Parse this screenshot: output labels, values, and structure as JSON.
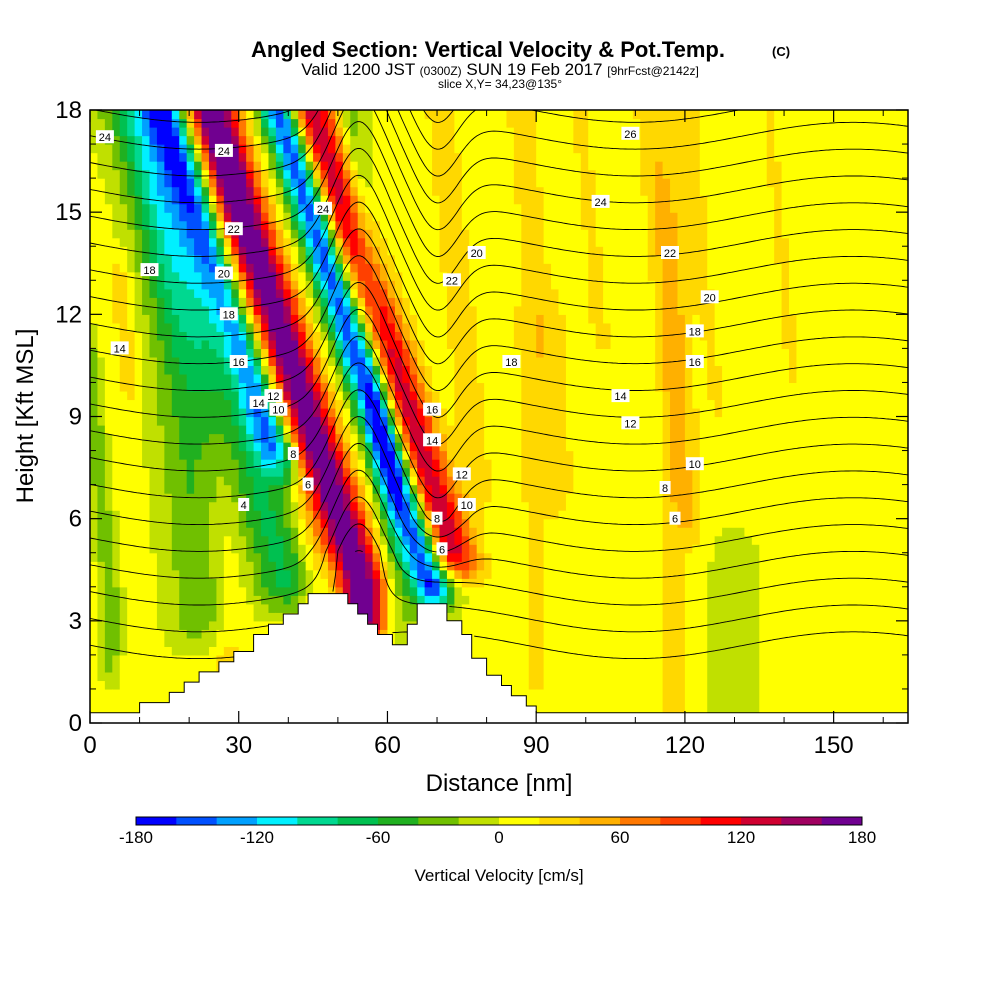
{
  "chart_data": {
    "type": "heatmap",
    "title_main": "Angled Section: Vertical Velocity & Pot.Temp.",
    "title_mark": "(C)",
    "subtitle_a": "Valid 1200 JST",
    "subtitle_b": "(0300Z)",
    "subtitle_c": "SUN 19 Feb 2017",
    "subtitle_d": "[9hrFcst@2142z]",
    "slice_label": "slice X,Y= 34,23@135°",
    "xlabel": "Distance [nm]",
    "ylabel": "Height [Kft MSL]",
    "xlim": [
      0,
      165
    ],
    "ylim": [
      0,
      18
    ],
    "x_ticks": [
      {
        "v": 0,
        "label": "0"
      },
      {
        "v": 30,
        "label": "30"
      },
      {
        "v": 60,
        "label": "60"
      },
      {
        "v": 90,
        "label": "90"
      },
      {
        "v": 120,
        "label": "120"
      },
      {
        "v": 150,
        "label": "150"
      }
    ],
    "y_ticks": [
      {
        "v": 0,
        "label": "0"
      },
      {
        "v": 3,
        "label": "3"
      },
      {
        "v": 6,
        "label": "6"
      },
      {
        "v": 9,
        "label": "9"
      },
      {
        "v": 12,
        "label": "12"
      },
      {
        "v": 15,
        "label": "15"
      },
      {
        "v": 18,
        "label": "18"
      }
    ],
    "colorbar": {
      "label": "Vertical Velocity [cm/s]",
      "range": [
        -180,
        180
      ],
      "colors": [
        "#0000ff",
        "#0050ff",
        "#00a0ff",
        "#00f0ff",
        "#00d890",
        "#00c050",
        "#20b020",
        "#70c000",
        "#c0e000",
        "#ffff00",
        "#ffd800",
        "#ffb000",
        "#ff7800",
        "#ff4000",
        "#ff0000",
        "#d00030",
        "#a00060",
        "#700090"
      ],
      "ticks": [
        {
          "v": -180,
          "label": "-180"
        },
        {
          "v": -120,
          "label": "-120"
        },
        {
          "v": -60,
          "label": "-60"
        },
        {
          "v": 0,
          "label": "0"
        },
        {
          "v": 60,
          "label": "60"
        },
        {
          "v": 120,
          "label": "120"
        },
        {
          "v": 180,
          "label": "180"
        }
      ]
    },
    "terrain": [
      [
        0,
        0.3
      ],
      [
        10,
        0.3
      ],
      [
        10,
        0.6
      ],
      [
        16,
        0.6
      ],
      [
        16,
        0.9
      ],
      [
        19,
        0.9
      ],
      [
        19,
        1.2
      ],
      [
        22,
        1.2
      ],
      [
        22,
        1.5
      ],
      [
        26,
        1.5
      ],
      [
        26,
        1.8
      ],
      [
        29,
        1.8
      ],
      [
        29,
        2.1
      ],
      [
        33,
        2.1
      ],
      [
        33,
        2.6
      ],
      [
        36,
        2.6
      ],
      [
        36,
        2.9
      ],
      [
        39,
        2.9
      ],
      [
        39,
        3.2
      ],
      [
        42,
        3.2
      ],
      [
        42,
        3.5
      ],
      [
        44,
        3.5
      ],
      [
        44,
        3.8
      ],
      [
        52,
        3.8
      ],
      [
        52,
        3.5
      ],
      [
        54,
        3.5
      ],
      [
        54,
        3.2
      ],
      [
        56,
        3.2
      ],
      [
        56,
        2.9
      ],
      [
        58,
        2.9
      ],
      [
        58,
        2.6
      ],
      [
        61,
        2.6
      ],
      [
        61,
        2.3
      ],
      [
        64,
        2.3
      ],
      [
        64,
        2.9
      ],
      [
        66,
        2.9
      ],
      [
        66,
        3.5
      ],
      [
        72,
        3.5
      ],
      [
        72,
        3.0
      ],
      [
        75,
        3.0
      ],
      [
        75,
        2.6
      ],
      [
        77,
        2.6
      ],
      [
        77,
        1.9
      ],
      [
        80,
        1.9
      ],
      [
        80,
        1.4
      ],
      [
        83,
        1.4
      ],
      [
        83,
        1.1
      ],
      [
        85,
        1.1
      ],
      [
        85,
        0.8
      ],
      [
        88,
        0.8
      ],
      [
        88,
        0.5
      ],
      [
        90,
        0.5
      ],
      [
        90,
        0.3
      ],
      [
        165,
        0.3
      ]
    ],
    "velocity_features": [
      {
        "x": 4,
        "h_lo": 2,
        "h_hi": 11,
        "width": 2,
        "w": -40
      },
      {
        "x": 12,
        "h_lo": 10,
        "h_hi": 13,
        "width": 2,
        "w": 30
      },
      {
        "x": 22,
        "h_lo": 3,
        "h_hi": 18,
        "width": 6,
        "w": -45
      },
      {
        "x": 28,
        "h_lo": 1,
        "h_hi": 18,
        "width": 4,
        "w": 20
      },
      {
        "x": 40,
        "h_lo": 4,
        "h_hi": 18,
        "width": 7,
        "w": -70
      },
      {
        "x": 46,
        "h_lo": 8,
        "h_hi": 18,
        "width": 4,
        "w": -120
      },
      {
        "x": 45,
        "h_lo": 3,
        "h_hi": 6,
        "width": 3,
        "w": 30
      },
      {
        "x": 55,
        "h_lo": 3,
        "h_hi": 18,
        "width": 5,
        "w": 180
      },
      {
        "x": 62,
        "h_lo": 3,
        "h_hi": 18,
        "width": 3,
        "w": -40
      },
      {
        "x": 69,
        "h_lo": 4,
        "h_hi": 18,
        "width": 4,
        "w": -180
      },
      {
        "x": 75,
        "h_lo": 5,
        "h_hi": 18,
        "width": 5,
        "w": 140
      },
      {
        "x": 80,
        "h_lo": 7,
        "h_hi": 18,
        "width": 3,
        "w": 30
      },
      {
        "x": 90,
        "h_lo": 1,
        "h_hi": 12,
        "width": 6,
        "w": 15
      },
      {
        "x": 96,
        "h_lo": 7,
        "h_hi": 18,
        "width": 4,
        "w": 20
      },
      {
        "x": 108,
        "h_lo": 11,
        "h_hi": 18,
        "width": 5,
        "w": 15
      },
      {
        "x": 118,
        "h_lo": 0,
        "h_hi": 18,
        "width": 3,
        "w": 20
      },
      {
        "x": 122,
        "h_lo": 6,
        "h_hi": 18,
        "width": 3,
        "w": 30
      },
      {
        "x": 130,
        "h_lo": 9,
        "h_hi": 18,
        "width": 4,
        "w": 15
      },
      {
        "x": 146,
        "h_lo": 10,
        "h_hi": 18,
        "width": 4,
        "w": 15
      },
      {
        "x": 130,
        "h_lo": 0,
        "h_hi": 5,
        "width": 5,
        "w": -15
      }
    ],
    "pot_temp_levels": [
      4,
      5,
      6,
      7,
      8,
      9,
      10,
      11,
      12,
      13,
      14,
      15,
      16,
      17,
      18,
      19,
      20,
      21,
      22,
      23,
      24,
      25,
      26
    ],
    "pot_temp_labels": [
      {
        "x": 3,
        "h": 17.2,
        "label": "24"
      },
      {
        "x": 27,
        "h": 16.8,
        "label": "24"
      },
      {
        "x": 109,
        "h": 17.3,
        "label": "26"
      },
      {
        "x": 47,
        "h": 15.1,
        "label": "24"
      },
      {
        "x": 103,
        "h": 15.3,
        "label": "24"
      },
      {
        "x": 29,
        "h": 14.5,
        "label": "22"
      },
      {
        "x": 117,
        "h": 13.8,
        "label": "22"
      },
      {
        "x": 78,
        "h": 13.8,
        "label": "20"
      },
      {
        "x": 12,
        "h": 13.3,
        "label": "18"
      },
      {
        "x": 73,
        "h": 13.0,
        "label": "22"
      },
      {
        "x": 27,
        "h": 13.2,
        "label": "20"
      },
      {
        "x": 125,
        "h": 12.5,
        "label": "20"
      },
      {
        "x": 28,
        "h": 12.0,
        "label": "18"
      },
      {
        "x": 122,
        "h": 11.5,
        "label": "18"
      },
      {
        "x": 6,
        "h": 11.0,
        "label": "14"
      },
      {
        "x": 85,
        "h": 10.6,
        "label": "18"
      },
      {
        "x": 30,
        "h": 10.6,
        "label": "16"
      },
      {
        "x": 122,
        "h": 10.6,
        "label": "16"
      },
      {
        "x": 34,
        "h": 9.4,
        "label": "14"
      },
      {
        "x": 37,
        "h": 9.6,
        "label": "12"
      },
      {
        "x": 107,
        "h": 9.6,
        "label": "14"
      },
      {
        "x": 69,
        "h": 9.2,
        "label": "16"
      },
      {
        "x": 38,
        "h": 9.2,
        "label": "10"
      },
      {
        "x": 109,
        "h": 8.8,
        "label": "12"
      },
      {
        "x": 69,
        "h": 8.3,
        "label": "14"
      },
      {
        "x": 41,
        "h": 7.9,
        "label": "8"
      },
      {
        "x": 122,
        "h": 7.6,
        "label": "10"
      },
      {
        "x": 75,
        "h": 7.3,
        "label": "12"
      },
      {
        "x": 44,
        "h": 7.0,
        "label": "6"
      },
      {
        "x": 116,
        "h": 6.9,
        "label": "8"
      },
      {
        "x": 31,
        "h": 6.4,
        "label": "4"
      },
      {
        "x": 76,
        "h": 6.4,
        "label": "10"
      },
      {
        "x": 118,
        "h": 6.0,
        "label": "6"
      },
      {
        "x": 70,
        "h": 6.0,
        "label": "8"
      },
      {
        "x": 71,
        "h": 5.1,
        "label": "6"
      }
    ]
  }
}
